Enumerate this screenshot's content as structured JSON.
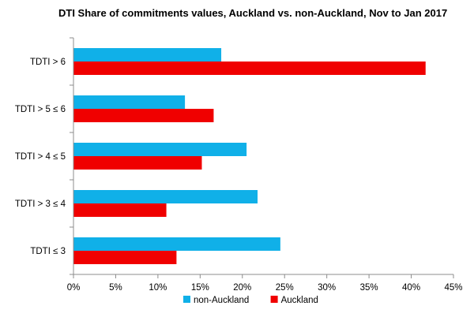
{
  "chart_data": {
    "type": "bar",
    "orientation": "horizontal",
    "title": "DTI Share of commitments values, Auckland vs. non-Auckland, Nov to Jan 2017",
    "categories": [
      "TDTI > 6",
      "TDTI > 5 ≤ 6",
      "TDTI > 4 ≤ 5",
      "TDTI > 3 ≤ 4",
      "TDTI ≤ 3"
    ],
    "series": [
      {
        "name": "non-Auckland",
        "color": "#10B0E8",
        "values": [
          17.5,
          13.2,
          20.5,
          21.8,
          24.5
        ]
      },
      {
        "name": "Auckland",
        "color": "#F00000",
        "values": [
          41.7,
          16.6,
          15.2,
          11.0,
          12.2
        ]
      }
    ],
    "xlim": [
      0,
      45
    ],
    "xticks": [
      0,
      5,
      10,
      15,
      20,
      25,
      30,
      35,
      40,
      45
    ],
    "tick_format": "{v}%",
    "xlabel": "",
    "ylabel": "",
    "grid": false,
    "legend_position": "bottom"
  }
}
